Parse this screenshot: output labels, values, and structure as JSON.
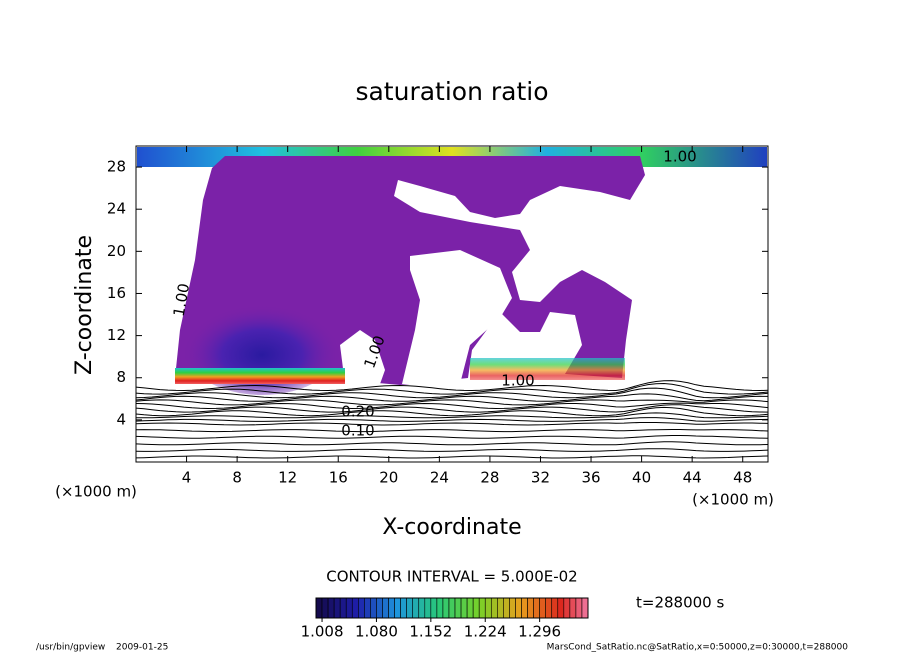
{
  "chart_data": {
    "type": "contour",
    "title": "saturation ratio",
    "x_label": "X-coordinate",
    "y_label": "Z-coordinate",
    "x_unit_label": "(×1000 m)",
    "y_unit_label": "(×1000 m)",
    "xlim": [
      0,
      50
    ],
    "xticks": [
      4,
      8,
      12,
      16,
      20,
      24,
      28,
      32,
      36,
      40,
      44,
      48
    ],
    "ylim": [
      0,
      30
    ],
    "yticks": [
      4,
      8,
      12,
      16,
      20,
      24,
      28
    ],
    "contour_labels": [
      {
        "value": 1,
        "label": "1.00"
      },
      {
        "value": 1,
        "label": "1.00"
      },
      {
        "value": 1,
        "label": "1.00"
      },
      {
        "value": 1,
        "label": "1.00"
      },
      {
        "value": 0.2,
        "label": "0.20"
      },
      {
        "value": 0.1,
        "label": "0.10"
      }
    ],
    "contour_interval_label": "CONTOUR INTERVAL = 5.000E-02",
    "colorbar": {
      "clim": [
        1.0,
        1.36
      ],
      "ticks": [
        1.008,
        {
          "value": 1.08,
          "label": "1.080"
        },
        1.152,
        1.224,
        1.296
      ]
    },
    "time_label": "t=288000 s",
    "footer_program": "/usr/bin/gpview",
    "footer_date": "2009-01-25",
    "footer_source": "MarsCond_SatRatio.nc@SatRatio,x=0:50000,z=0:30000,t=288000"
  }
}
